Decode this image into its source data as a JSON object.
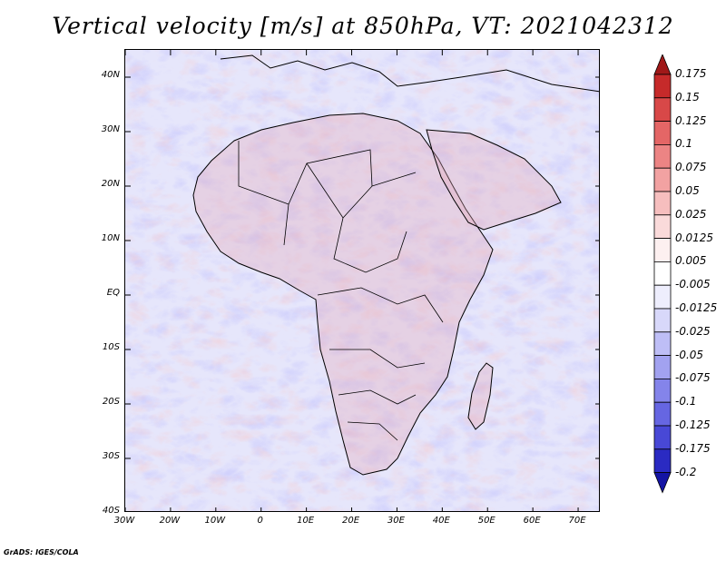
{
  "title": "Vertical velocity [m/s] at 850hPa, VT: 2021042312",
  "footer": "GrADS: IGES/COLA",
  "map": {
    "lat_range": [
      -40,
      45
    ],
    "lon_range": [
      -30,
      75
    ],
    "lat_ticks": [
      {
        "value": 40,
        "label": "40N"
      },
      {
        "value": 30,
        "label": "30N"
      },
      {
        "value": 20,
        "label": "20N"
      },
      {
        "value": 10,
        "label": "10N"
      },
      {
        "value": 0,
        "label": "EQ"
      },
      {
        "value": -10,
        "label": "10S"
      },
      {
        "value": -20,
        "label": "20S"
      },
      {
        "value": -30,
        "label": "30S"
      },
      {
        "value": -40,
        "label": "40S"
      }
    ],
    "lon_ticks": [
      {
        "value": -30,
        "label": "30W"
      },
      {
        "value": -20,
        "label": "20W"
      },
      {
        "value": -10,
        "label": "10W"
      },
      {
        "value": 0,
        "label": "0"
      },
      {
        "value": 10,
        "label": "10E"
      },
      {
        "value": 20,
        "label": "20E"
      },
      {
        "value": 30,
        "label": "30E"
      },
      {
        "value": 40,
        "label": "40E"
      },
      {
        "value": 50,
        "label": "50E"
      },
      {
        "value": 60,
        "label": "60E"
      },
      {
        "value": 70,
        "label": "70E"
      }
    ]
  },
  "colorbar": {
    "levels": [
      "0.175",
      "0.15",
      "0.125",
      "0.1",
      "0.075",
      "0.05",
      "0.025",
      "0.0125",
      "0.005",
      "-0.005",
      "-0.0125",
      "-0.025",
      "-0.05",
      "-0.075",
      "-0.1",
      "-0.125",
      "-0.175",
      "-0.2"
    ],
    "colors": [
      "#a01818",
      "#c62a2a",
      "#d84848",
      "#e46666",
      "#ec8484",
      "#f2a2a2",
      "#f6bebe",
      "#fadada",
      "#fdf0f0",
      "#ffffff",
      "#eeeefd",
      "#d8d8fa",
      "#bebef6",
      "#a2a2f0",
      "#8484ea",
      "#6666e2",
      "#4848d6",
      "#2a2ac2",
      "#1414a4"
    ]
  }
}
